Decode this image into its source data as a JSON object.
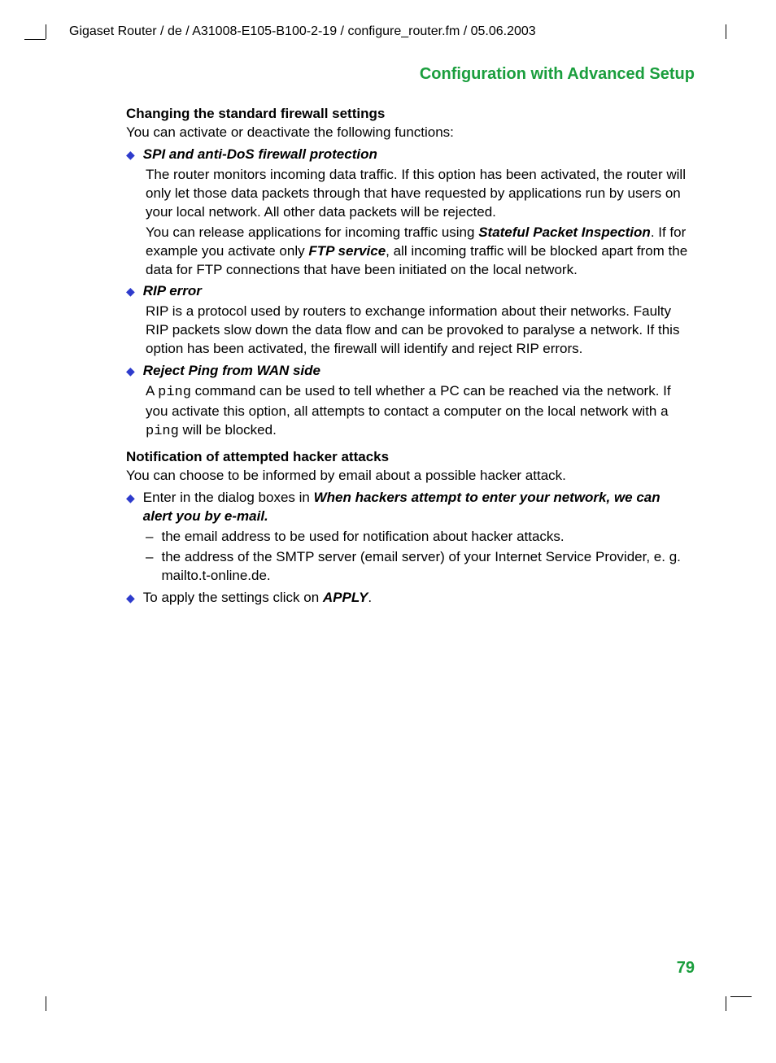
{
  "header_path": "Gigaset Router / de / A31008-E105-B100-2-19 / configure_router.fm / 05.06.2003",
  "section_title": "Configuration with Advanced Setup",
  "page_number": "79",
  "colors": {
    "accent_green": "#1a9e3d",
    "bullet_blue": "#2e3bcc",
    "text": "#000000",
    "background": "#ffffff"
  },
  "h1": {
    "text": "Changing the standard firewall settings",
    "intro": "You can activate or deactivate the following functions:"
  },
  "bullets1": [
    {
      "title": "SPI and anti-DoS firewall protection",
      "paras": [
        [
          {
            "t": "The router monitors incoming data traffic. If this option has been activated, the router will only let those data packets through that have requested by applications run by users on your local network. All other data packets will be rejected."
          }
        ],
        [
          {
            "t": "You can release applications for incoming traffic using "
          },
          {
            "t": "Stateful Packet Inspection",
            "cls": "bold-it"
          },
          {
            "t": ". If for example you activate only "
          },
          {
            "t": "FTP service",
            "cls": "bold-it"
          },
          {
            "t": ", all incoming traffic will be blocked apart from the data for FTP connections that have been initiated on the local network."
          }
        ]
      ]
    },
    {
      "title": "RIP error",
      "paras": [
        [
          {
            "t": "RIP is a protocol used by routers to exchange information about their networks. Faulty RIP packets slow down the data flow and can be provoked to paralyse a network. If this option has been activated, the firewall will identify and reject RIP errors."
          }
        ]
      ]
    },
    {
      "title": "Reject Ping from WAN side",
      "paras": [
        [
          {
            "t": "A "
          },
          {
            "t": "ping",
            "cls": "mono"
          },
          {
            "t": " command can be used to tell whether a PC can be reached via the network. If you activate this option, all attempts to contact a computer on the local network with a "
          },
          {
            "t": "ping",
            "cls": "mono"
          },
          {
            "t": " will be blocked."
          }
        ]
      ]
    }
  ],
  "h2": {
    "text": "Notification of attempted hacker attacks",
    "intro": "You can choose to be informed by email about a possible hacker attack."
  },
  "bullets2": [
    {
      "runs": [
        {
          "t": "Enter in the dialog boxes in "
        },
        {
          "t": "When hackers attempt to enter your network, we can alert you by e-mail.",
          "cls": "bold-it"
        }
      ],
      "dashes": [
        "the email address to be used for notification about hacker attacks.",
        "the address of the SMTP server (email server) of your Internet Service Provider, e. g. mailto.t-online.de."
      ]
    },
    {
      "runs": [
        {
          "t": "To apply the settings click on "
        },
        {
          "t": "APPLY",
          "cls": "bold-it"
        },
        {
          "t": "."
        }
      ],
      "dashes": []
    }
  ]
}
